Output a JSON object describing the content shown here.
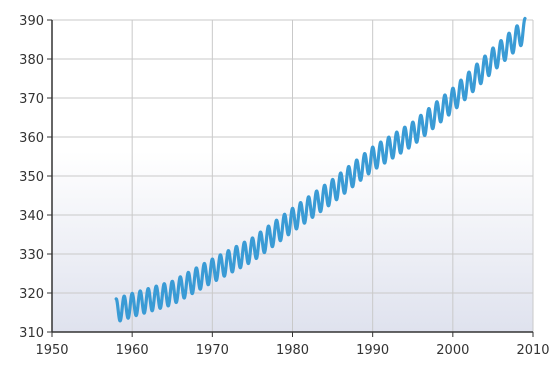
{
  "chart_data": {
    "type": "line",
    "title": "",
    "xlabel": "",
    "ylabel": "",
    "xlim": [
      1950,
      2010
    ],
    "ylim": [
      310,
      390
    ],
    "x_ticks": [
      1950,
      1960,
      1970,
      1980,
      1990,
      2000,
      2010
    ],
    "y_ticks": [
      310,
      320,
      330,
      340,
      350,
      360,
      370,
      380,
      390
    ],
    "x_tick_labels": [
      "1950",
      "1960",
      "1970",
      "1980",
      "1990",
      "2000",
      "2010"
    ],
    "y_tick_labels": [
      "310",
      "320",
      "330",
      "340",
      "350",
      "360",
      "370",
      "380",
      "390"
    ],
    "grid": true,
    "legend": "none",
    "series": [
      {
        "color": "#3a9bd5",
        "seasonal_amplitude": 3,
        "trend": [
          [
            1958,
            315.5
          ],
          [
            1960,
            316.9
          ],
          [
            1965,
            320.0
          ],
          [
            1970,
            325.7
          ],
          [
            1975,
            331.1
          ],
          [
            1980,
            338.7
          ],
          [
            1985,
            346.1
          ],
          [
            1990,
            354.4
          ],
          [
            1995,
            360.8
          ],
          [
            2000,
            369.5
          ],
          [
            2005,
            379.8
          ],
          [
            2009,
            387.4
          ]
        ]
      }
    ],
    "colors": {
      "line": "#3a9bd5",
      "plot_bg_top": "#ffffff",
      "plot_bg_bottom": "#dfe2ee",
      "grid": "#c9c9c9",
      "axis": "#333333"
    }
  }
}
